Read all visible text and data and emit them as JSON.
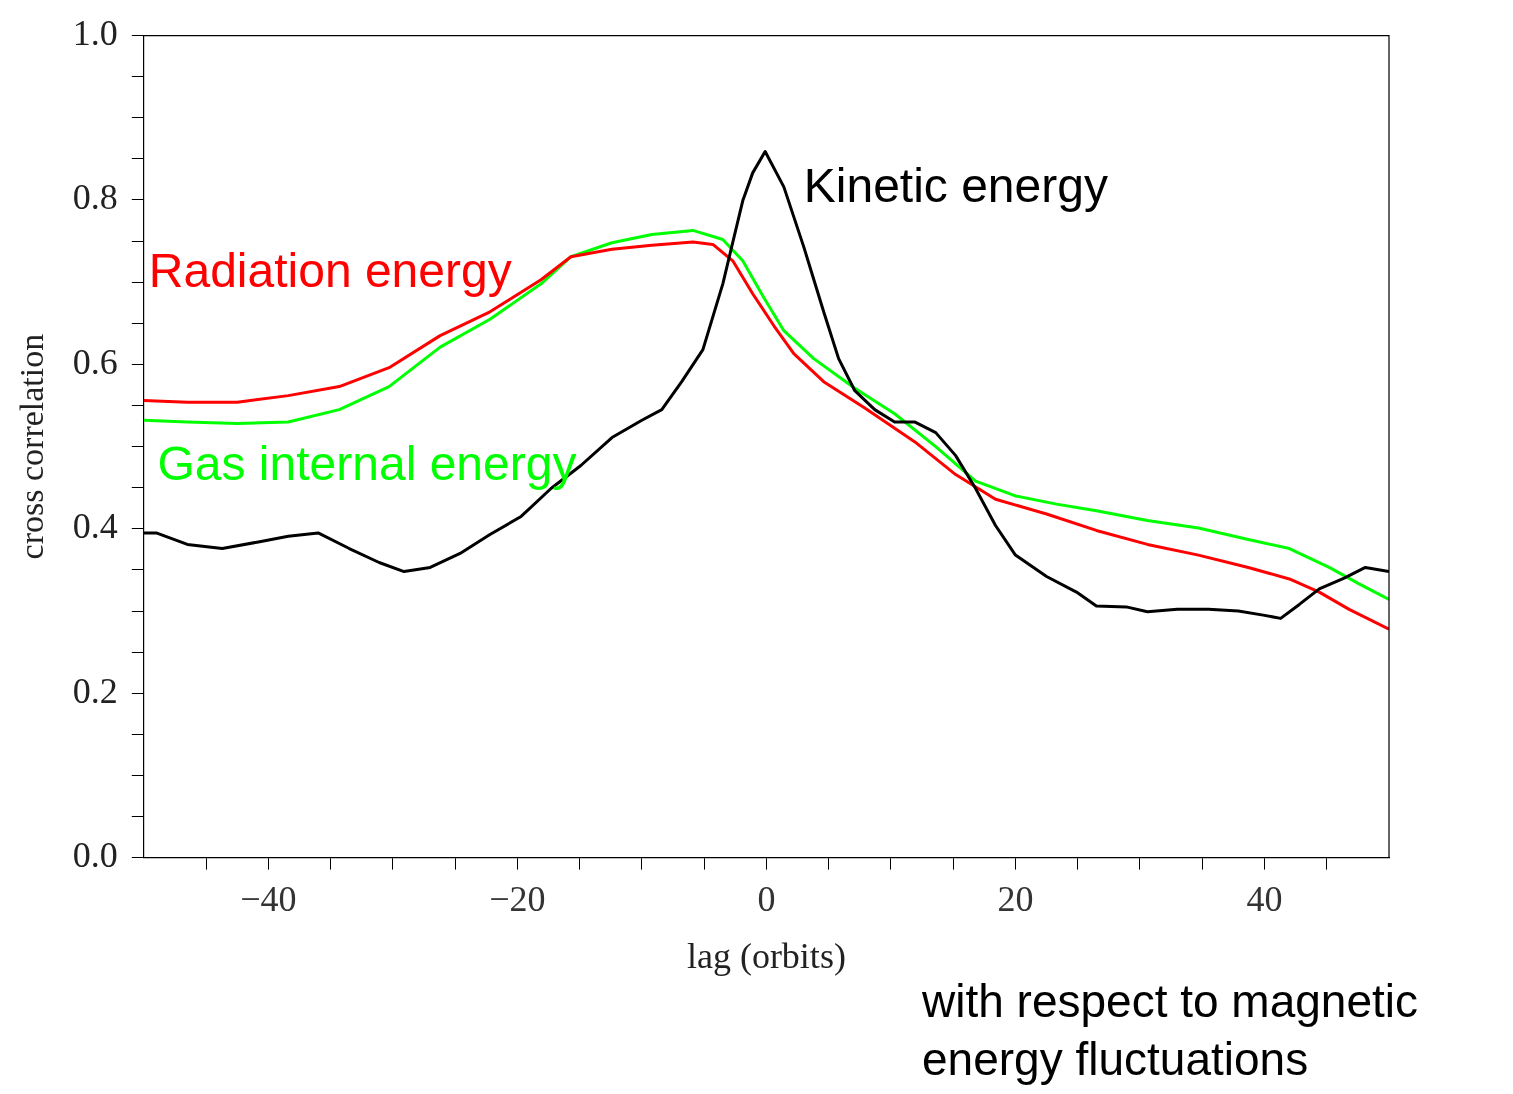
{
  "chart_data": {
    "type": "line",
    "xlabel": "lag (orbits)",
    "ylabel": "cross correlation",
    "annotations": [
      "with respect to magnetic energy fluctuations"
    ],
    "xlim": [
      -50,
      50
    ],
    "ylim": [
      0,
      1
    ],
    "xticks": [
      {
        "value": -45,
        "label": null
      },
      -40,
      {
        "value": -35,
        "label": null
      },
      {
        "value": -30,
        "label": null
      },
      {
        "value": -25,
        "label": null
      },
      -20,
      {
        "value": -15,
        "label": null
      },
      {
        "value": -10,
        "label": null
      },
      {
        "value": -5,
        "label": null
      },
      0,
      {
        "value": 5,
        "label": null
      },
      {
        "value": 10,
        "label": null
      },
      {
        "value": 15,
        "label": null
      },
      20,
      {
        "value": 25,
        "label": null
      },
      {
        "value": 30,
        "label": null
      },
      {
        "value": 35,
        "label": null
      },
      40,
      {
        "value": 45,
        "label": null
      }
    ],
    "yticks": [
      {
        "value": 0,
        "label": "0.0"
      },
      {
        "value": 0.05,
        "label": null
      },
      {
        "value": 0.1,
        "label": null
      },
      {
        "value": 0.15,
        "label": null
      },
      {
        "value": 0.2,
        "label": "0.2"
      },
      {
        "value": 0.25,
        "label": null
      },
      {
        "value": 0.3,
        "label": null
      },
      {
        "value": 0.35,
        "label": null
      },
      {
        "value": 0.4,
        "label": "0.4"
      },
      {
        "value": 0.45,
        "label": null
      },
      {
        "value": 0.5,
        "label": null
      },
      {
        "value": 0.55,
        "label": null
      },
      {
        "value": 0.6,
        "label": "0.6"
      },
      {
        "value": 0.65,
        "label": null
      },
      {
        "value": 0.7,
        "label": null
      },
      {
        "value": 0.75,
        "label": null
      },
      {
        "value": 0.8,
        "label": "0.8"
      },
      {
        "value": 0.85,
        "label": null
      },
      {
        "value": 0.9,
        "label": null
      },
      {
        "value": 0.95,
        "label": null
      },
      {
        "value": 1,
        "label": "1.0"
      }
    ],
    "grid": false,
    "legend": false,
    "marker": "none",
    "line_style": "solid",
    "series": [
      {
        "name": "Kinetic energy",
        "color": "#000000",
        "x": [
          -50,
          -49,
          -46.5,
          -43.7,
          -40.8,
          -38.4,
          -36,
          -33.5,
          -31.1,
          -29.1,
          -27,
          -24.6,
          -22.2,
          -19.7,
          -17.3,
          -14.9,
          -12.4,
          -10,
          -8.4,
          -6.8,
          -5.1,
          -3.5,
          -1.9,
          -1.1,
          -0.1,
          1.4,
          3,
          4.6,
          5.8,
          7.1,
          8.7,
          10.3,
          11.9,
          13.6,
          15.2,
          16.8,
          18.4,
          20,
          22.5,
          24.9,
          26.5,
          28.9,
          30.6,
          33,
          35.5,
          37.9,
          39.9,
          41.3,
          42.8,
          44.4,
          46.4,
          48.1,
          50
        ],
        "values": [
          0.395,
          0.395,
          0.381,
          0.376,
          0.384,
          0.391,
          0.395,
          0.376,
          0.359,
          0.348,
          0.353,
          0.37,
          0.393,
          0.415,
          0.449,
          0.477,
          0.511,
          0.532,
          0.545,
          0.579,
          0.618,
          0.698,
          0.799,
          0.833,
          0.859,
          0.816,
          0.743,
          0.664,
          0.607,
          0.568,
          0.545,
          0.53,
          0.53,
          0.517,
          0.489,
          0.449,
          0.404,
          0.368,
          0.342,
          0.323,
          0.306,
          0.305,
          0.299,
          0.302,
          0.302,
          0.3,
          0.295,
          0.291,
          0.308,
          0.327,
          0.34,
          0.353,
          0.348
        ]
      },
      {
        "name": "Radiation energy",
        "color": "#ff0000",
        "x": [
          -50,
          -46.5,
          -42.5,
          -38.4,
          -34.3,
          -30.3,
          -26.2,
          -22.2,
          -18.1,
          -15.7,
          -12.4,
          -9.2,
          -5.9,
          -4.3,
          -2.7,
          -1.1,
          0.6,
          2.2,
          4.6,
          7.9,
          11.9,
          15.2,
          18.4,
          22.5,
          26.5,
          30.6,
          34.7,
          38.7,
          42,
          44.4,
          46.8,
          50
        ],
        "values": [
          0.556,
          0.554,
          0.554,
          0.562,
          0.573,
          0.596,
          0.635,
          0.664,
          0.703,
          0.731,
          0.74,
          0.745,
          0.749,
          0.746,
          0.726,
          0.686,
          0.647,
          0.613,
          0.579,
          0.547,
          0.506,
          0.466,
          0.436,
          0.418,
          0.398,
          0.381,
          0.368,
          0.353,
          0.339,
          0.323,
          0.302,
          0.278
        ]
      },
      {
        "name": "Gas internal energy",
        "color": "#00ff00",
        "x": [
          -50,
          -46.5,
          -42.5,
          -38.4,
          -34.3,
          -30.3,
          -26.2,
          -22.2,
          -18.1,
          -15.7,
          -12.4,
          -9.2,
          -5.9,
          -3.5,
          -1.9,
          -0.2,
          1.4,
          3.8,
          7.1,
          10.3,
          13.6,
          16.8,
          20,
          23.3,
          26.5,
          30.6,
          34.7,
          38.7,
          42,
          45.2,
          47.6,
          50
        ],
        "values": [
          0.532,
          0.53,
          0.528,
          0.53,
          0.545,
          0.573,
          0.621,
          0.655,
          0.698,
          0.731,
          0.748,
          0.758,
          0.763,
          0.752,
          0.726,
          0.681,
          0.641,
          0.607,
          0.571,
          0.54,
          0.5,
          0.458,
          0.44,
          0.43,
          0.422,
          0.41,
          0.401,
          0.387,
          0.376,
          0.353,
          0.333,
          0.314
        ]
      }
    ]
  }
}
